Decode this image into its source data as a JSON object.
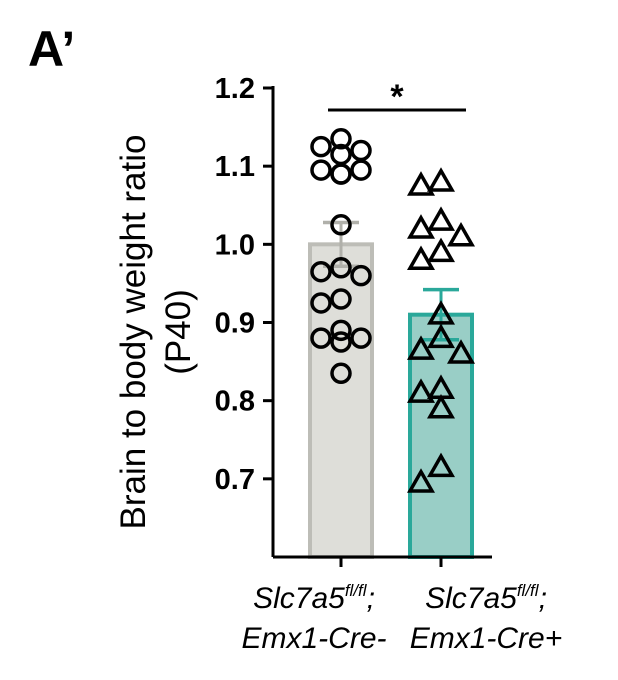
{
  "panel_label": "A’",
  "chart_data": {
    "type": "bar",
    "ylabel_line1": "Brain to body weight ratio",
    "ylabel_line2": "(P40)",
    "ylim": [
      0.6,
      1.2
    ],
    "yticks": [
      "1.2",
      "1.1",
      "1.0",
      "0.9",
      "0.8",
      "0.7"
    ],
    "ytick_values": [
      1.2,
      1.1,
      1.0,
      0.9,
      0.8,
      0.7
    ],
    "significance": "*",
    "groups": [
      {
        "label_gene": "Slc7a5",
        "label_sup": "fl/fl",
        "label_sep": ";",
        "label_line2": "Emx1-Cre-",
        "mean": 1.0,
        "sem": 0.028,
        "marker": "circle",
        "bar_color": "#deded9",
        "bar_edge": "#bdbdb7",
        "err_color": "#b0b0aa",
        "points": [
          1.135,
          1.125,
          1.12,
          1.115,
          1.095,
          1.095,
          1.09,
          1.09,
          1.025,
          0.97,
          0.965,
          0.96,
          0.93,
          0.925,
          0.89,
          0.88,
          0.88,
          0.875,
          0.835
        ]
      },
      {
        "label_gene": "Slc7a5",
        "label_sup": "fl/fl",
        "label_sep": ";",
        "label_line2": "Emx1-Cre+",
        "mean": 0.91,
        "sem": 0.032,
        "marker": "triangle",
        "bar_color": "#99cec6",
        "bar_edge": "#2aa89a",
        "err_color": "#2aa89a",
        "points": [
          1.08,
          1.075,
          1.03,
          1.02,
          1.01,
          0.99,
          0.98,
          0.91,
          0.88,
          0.865,
          0.86,
          0.815,
          0.81,
          0.79,
          0.715,
          0.695
        ]
      }
    ]
  }
}
